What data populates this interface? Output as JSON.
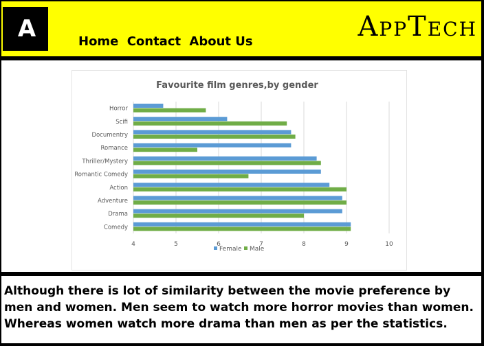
{
  "header": {
    "logo_text": "A",
    "nav": [
      "Home",
      "Contact",
      "About Us"
    ],
    "brand": "AppTech"
  },
  "colors": {
    "header_bg": "#ffff00",
    "female": "#5b9bd5",
    "male": "#70ad47"
  },
  "chart_data": {
    "type": "bar",
    "orientation": "horizontal",
    "title": "Favourite film genres,by gender",
    "categories": [
      "Horror",
      "Scifi",
      "Documentry",
      "Romance",
      "Thriller/Mystery",
      "Romantic Comedy",
      "Action",
      "Adventure",
      "Drama",
      "Comedy"
    ],
    "series": [
      {
        "name": "Female",
        "values": [
          4.7,
          6.2,
          7.7,
          7.7,
          8.3,
          8.4,
          8.6,
          8.9,
          8.9,
          9.1
        ]
      },
      {
        "name": "Male",
        "values": [
          5.7,
          7.6,
          7.8,
          5.5,
          8.4,
          6.7,
          9.0,
          9.0,
          8.0,
          9.1
        ]
      }
    ],
    "xlim": [
      4,
      10
    ],
    "xticks": [
      "4",
      "5",
      "6",
      "7",
      "8",
      "9",
      "10"
    ],
    "grid": true,
    "legend": "bottom"
  },
  "caption": "Although there is lot of similarity between the movie preference by men and women. Men seem to watch more horror movies than women. Whereas women watch more drama than men as per the statistics."
}
